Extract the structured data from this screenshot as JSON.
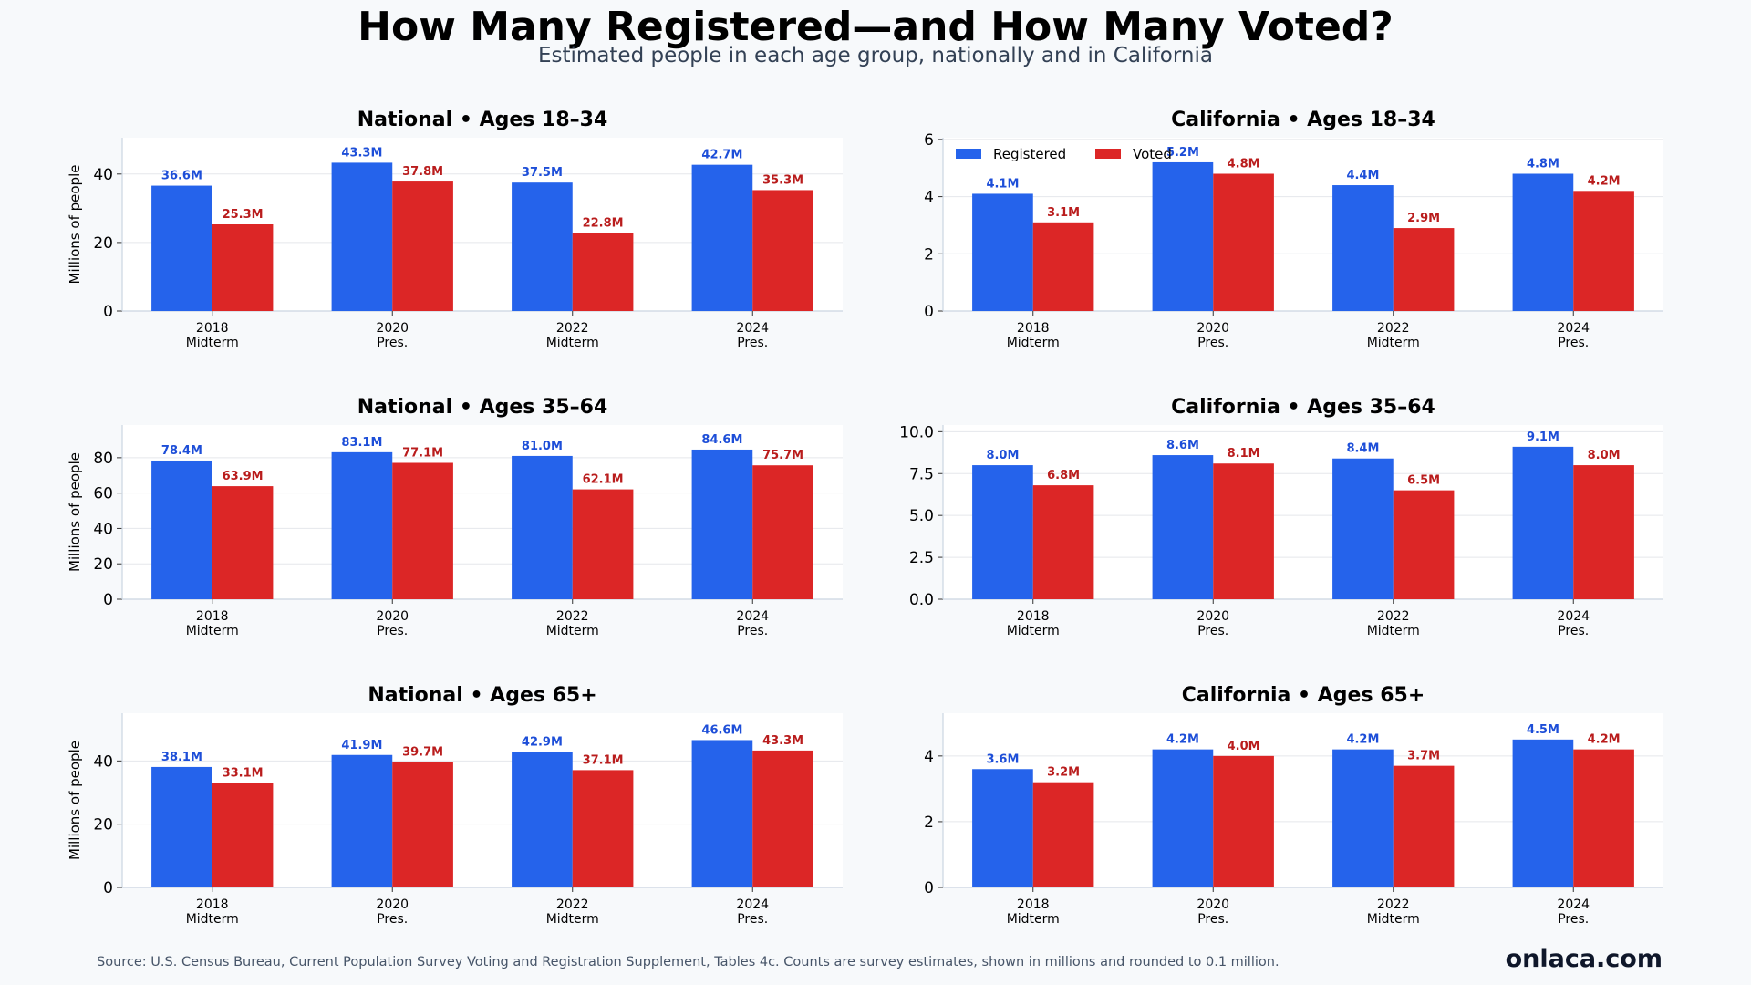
{
  "title": "How Many Registered—and How Many Voted?",
  "subtitle": "Estimated people in each age group, nationally and in California",
  "source": "Source: U.S. Census Bureau, Current Population Survey Voting and Registration Supplement, Tables 4c. Counts are survey estimates, shown in millions and rounded to 0.1 million.",
  "brand": "onlaca.com",
  "colors": {
    "registered": "#2563eb",
    "voted": "#dc2626",
    "registered_label": "#1d4ed8",
    "voted_label": "#b91c1c"
  },
  "legend": {
    "registered": "Registered",
    "voted": "Voted",
    "placement": "top-left of California Ages 18–34"
  },
  "chart_data": [
    {
      "type": "bar",
      "title": "National • Ages 18–34",
      "ylabel": "Millions of people",
      "categories": [
        "2018\nMidterm",
        "2020\nPres.",
        "2022\nMidterm",
        "2024\nPres."
      ],
      "yticks": [
        "0",
        "20",
        "40"
      ],
      "ylim": [
        0,
        50.6
      ],
      "series": [
        {
          "name": "Registered",
          "values": [
            36.6,
            43.3,
            37.5,
            42.7
          ],
          "labels": [
            "36.6M",
            "43.3M",
            "37.5M",
            "42.7M"
          ]
        },
        {
          "name": "Voted",
          "values": [
            25.3,
            37.8,
            22.8,
            35.3
          ],
          "labels": [
            "25.3M",
            "37.8M",
            "22.8M",
            "35.3M"
          ]
        }
      ]
    },
    {
      "type": "bar",
      "title": "California • Ages 18–34",
      "ylabel": "",
      "categories": [
        "2018\nMidterm",
        "2020\nPres.",
        "2022\nMidterm",
        "2024\nPres."
      ],
      "yticks": [
        "0",
        "2",
        "4",
        "6"
      ],
      "ylim": [
        0,
        6.06
      ],
      "series": [
        {
          "name": "Registered",
          "values": [
            4.1,
            5.2,
            4.4,
            4.8
          ],
          "labels": [
            "4.1M",
            "5.2M",
            "4.4M",
            "4.8M"
          ]
        },
        {
          "name": "Voted",
          "values": [
            3.1,
            4.8,
            2.9,
            4.2
          ],
          "labels": [
            "3.1M",
            "4.8M",
            "2.9M",
            "4.2M"
          ]
        }
      ],
      "legend": true
    },
    {
      "type": "bar",
      "title": "National • Ages 35–64",
      "ylabel": "Millions of people",
      "categories": [
        "2018\nMidterm",
        "2020\nPres.",
        "2022\nMidterm",
        "2024\nPres."
      ],
      "yticks": [
        "0",
        "20",
        "40",
        "60",
        "80"
      ],
      "ylim": [
        0,
        98.5
      ],
      "series": [
        {
          "name": "Registered",
          "values": [
            78.4,
            83.1,
            81.0,
            84.6
          ],
          "labels": [
            "78.4M",
            "83.1M",
            "81.0M",
            "84.6M"
          ]
        },
        {
          "name": "Voted",
          "values": [
            63.9,
            77.1,
            62.1,
            75.7
          ],
          "labels": [
            "63.9M",
            "77.1M",
            "62.1M",
            "75.7M"
          ]
        }
      ]
    },
    {
      "type": "bar",
      "title": "California • Ages 35–64",
      "ylabel": "",
      "categories": [
        "2018\nMidterm",
        "2020\nPres.",
        "2022\nMidterm",
        "2024\nPres."
      ],
      "yticks": [
        "0.0",
        "2.5",
        "5.0",
        "7.5",
        "10.0"
      ],
      "ylim": [
        0,
        10.4
      ],
      "series": [
        {
          "name": "Registered",
          "values": [
            8.0,
            8.6,
            8.4,
            9.1
          ],
          "labels": [
            "8.0M",
            "8.6M",
            "8.4M",
            "9.1M"
          ]
        },
        {
          "name": "Voted",
          "values": [
            6.8,
            8.1,
            6.5,
            8.0
          ],
          "labels": [
            "6.8M",
            "8.1M",
            "6.5M",
            "8.0M"
          ]
        }
      ]
    },
    {
      "type": "bar",
      "title": "National • Ages 65+",
      "ylabel": "Millions of people",
      "categories": [
        "2018\nMidterm",
        "2020\nPres.",
        "2022\nMidterm",
        "2024\nPres."
      ],
      "yticks": [
        "0",
        "20",
        "40"
      ],
      "ylim": [
        0,
        55.1
      ],
      "series": [
        {
          "name": "Registered",
          "values": [
            38.1,
            41.9,
            42.9,
            46.6
          ],
          "labels": [
            "38.1M",
            "41.9M",
            "42.9M",
            "46.6M"
          ]
        },
        {
          "name": "Voted",
          "values": [
            33.1,
            39.7,
            37.1,
            43.3
          ],
          "labels": [
            "33.1M",
            "39.7M",
            "37.1M",
            "43.3M"
          ]
        }
      ]
    },
    {
      "type": "bar",
      "title": "California • Ages 65+",
      "ylabel": "",
      "categories": [
        "2018\nMidterm",
        "2020\nPres.",
        "2022\nMidterm",
        "2024\nPres."
      ],
      "yticks": [
        "0",
        "2",
        "4"
      ],
      "ylim": [
        0,
        5.3
      ],
      "series": [
        {
          "name": "Registered",
          "values": [
            3.6,
            4.2,
            4.2,
            4.5
          ],
          "labels": [
            "3.6M",
            "4.2M",
            "4.2M",
            "4.5M"
          ]
        },
        {
          "name": "Voted",
          "values": [
            3.2,
            4.0,
            3.7,
            4.2
          ],
          "labels": [
            "3.2M",
            "4.0M",
            "3.7M",
            "4.2M"
          ]
        }
      ]
    }
  ]
}
